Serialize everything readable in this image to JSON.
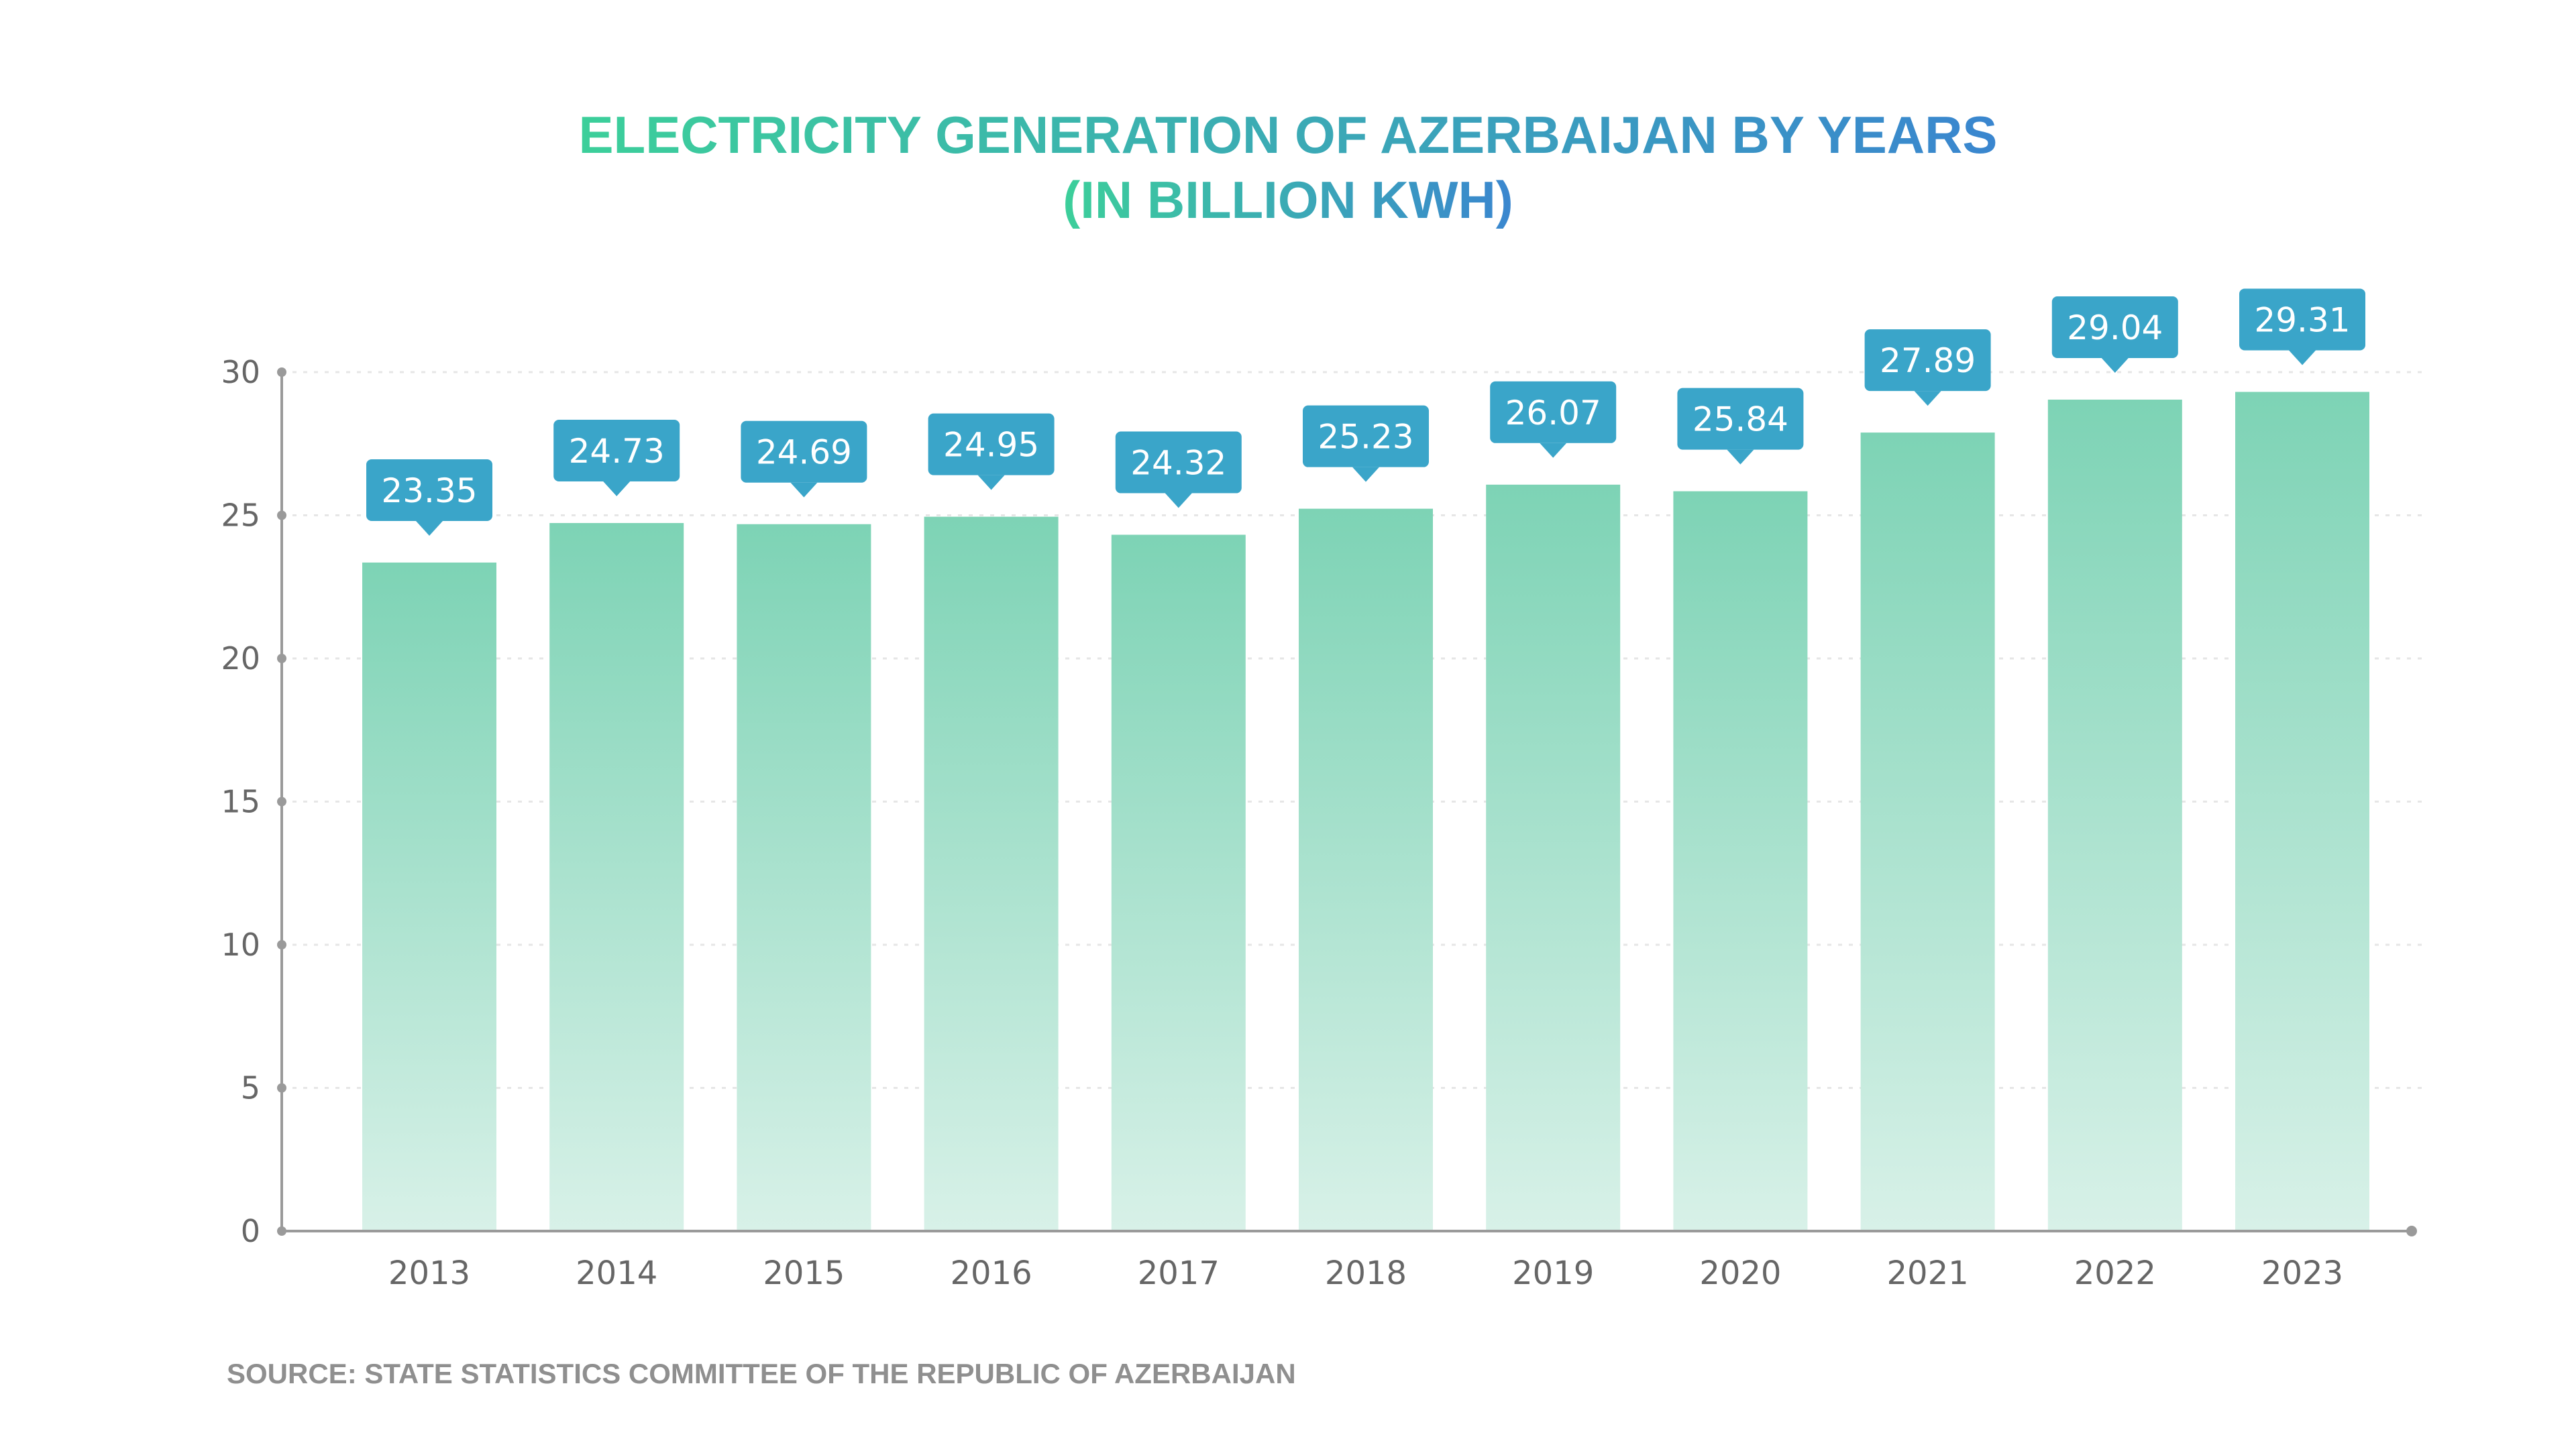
{
  "chart_data": {
    "type": "bar",
    "title": "ELECTRICITY GENERATION OF AZERBAIJAN BY YEARS",
    "subtitle": "(IN BILLION KWH)",
    "categories": [
      "2013",
      "2014",
      "2015",
      "2016",
      "2017",
      "2018",
      "2019",
      "2020",
      "2021",
      "2022",
      "2023"
    ],
    "values": [
      23.35,
      24.73,
      24.69,
      24.95,
      24.32,
      25.23,
      26.07,
      25.84,
      27.89,
      29.04,
      29.31
    ],
    "value_labels": [
      "23.35",
      "24.73",
      "24.69",
      "24.95",
      "24.32",
      "25.23",
      "26.07",
      "25.84",
      "27.89",
      "29.04",
      "29.31"
    ],
    "y_ticks": [
      0,
      5,
      10,
      15,
      20,
      25,
      30
    ],
    "y_tick_labels": [
      "0",
      "5",
      "10",
      "15",
      "20",
      "25",
      "30"
    ],
    "ylim": [
      0,
      30
    ],
    "xlabel": "",
    "ylabel": "",
    "grid": true,
    "source": "SOURCE: STATE STATISTICS COMMITTEE OF THE REPUBLIC OF AZERBAIJAN",
    "colors": {
      "title_gradient_start": "#3ccf9a",
      "title_gradient_end": "#3a86cf",
      "bar_top": "#7dd3b5",
      "bar_bottom": "#d8f1e8",
      "label_box": "#3aa5c9",
      "axis": "#9a9a9a",
      "grid": "#e6e6e6"
    }
  }
}
